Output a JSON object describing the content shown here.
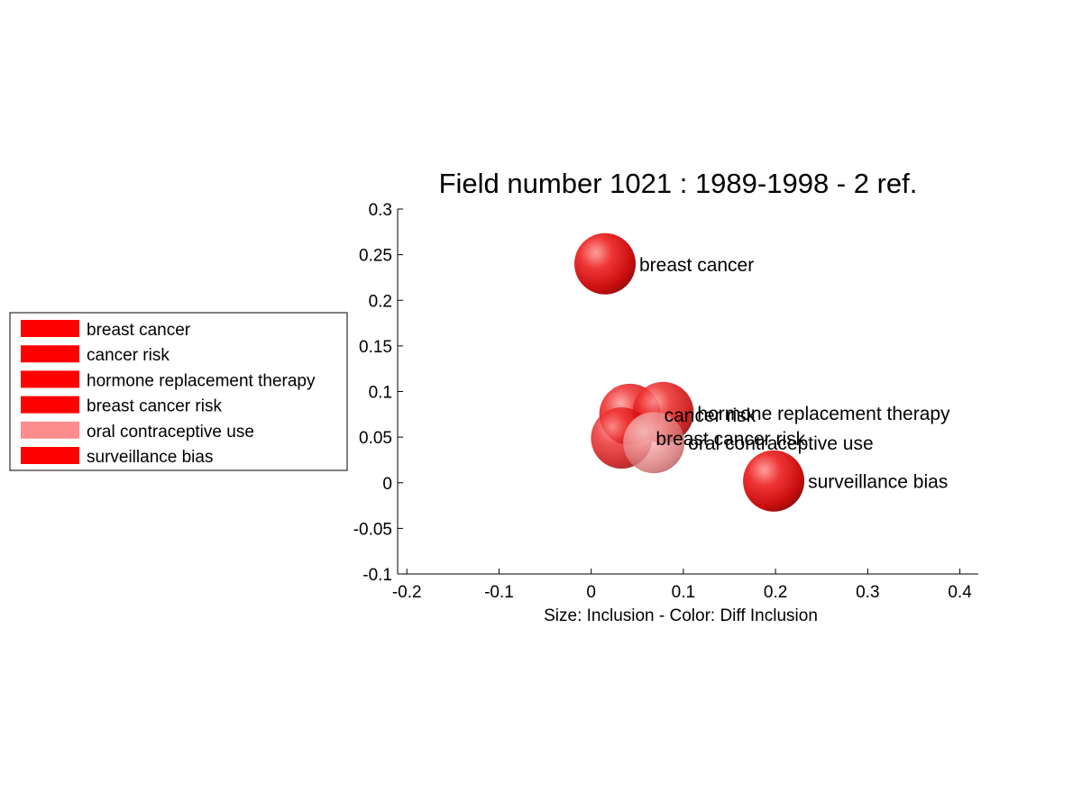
{
  "chart_data": {
    "type": "scatter",
    "title": "Field number 1021 : 1989-1998  - 2 ref.",
    "xlabel": "Size: Inclusion - Color: Diff Inclusion",
    "ylabel": "",
    "xlim": [
      -0.21,
      0.42
    ],
    "ylim": [
      -0.1,
      0.3
    ],
    "xticks": [
      -0.2,
      -0.1,
      0,
      0.1,
      0.2,
      0.3,
      0.4
    ],
    "xtick_labels": [
      "-0.2",
      "-0.1",
      "0",
      "0.1",
      "0.2",
      "0.3",
      "0.4"
    ],
    "yticks": [
      -0.1,
      -0.05,
      0,
      0.05,
      0.1,
      0.15,
      0.2,
      0.25,
      0.3
    ],
    "ytick_labels": [
      "-0.1",
      "-0.05",
      "0",
      "0.05",
      "0.1",
      "0.15",
      "0.2",
      "0.25",
      "0.3"
    ],
    "grid": false,
    "legend_position": "left",
    "points": [
      {
        "label": "breast cancer",
        "x": 0.015,
        "y": 0.24,
        "color": "#e60000",
        "alpha": 0.95
      },
      {
        "label": "cancer risk",
        "x": 0.042,
        "y": 0.075,
        "color": "#e60000",
        "alpha": 0.85
      },
      {
        "label": "hormone replacement therapy",
        "x": 0.078,
        "y": 0.077,
        "color": "#e60000",
        "alpha": 0.85
      },
      {
        "label": "breast cancer risk",
        "x": 0.033,
        "y": 0.049,
        "color": "#e60000",
        "alpha": 0.8
      },
      {
        "label": "oral contraceptive use",
        "x": 0.068,
        "y": 0.044,
        "color": "#ff8080",
        "alpha": 0.8
      },
      {
        "label": "surveillance bias",
        "x": 0.198,
        "y": 0.002,
        "color": "#e60000",
        "alpha": 0.95
      }
    ],
    "legend": [
      {
        "label": "breast cancer",
        "color": "#ff0000"
      },
      {
        "label": "cancer risk",
        "color": "#ff0000"
      },
      {
        "label": "hormone replacement therapy",
        "color": "#ff0000"
      },
      {
        "label": "breast cancer risk",
        "color": "#ff0000"
      },
      {
        "label": "oral contraceptive use",
        "color": "#ff8c8c"
      },
      {
        "label": "surveillance bias",
        "color": "#ff0000"
      }
    ]
  }
}
